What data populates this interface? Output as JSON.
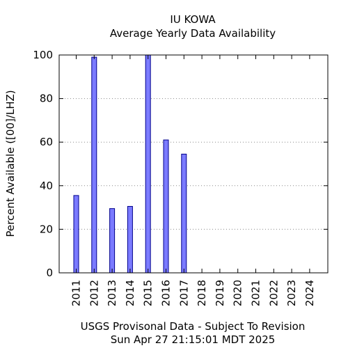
{
  "chart_data": {
    "type": "bar",
    "title": "IU KOWA",
    "subtitle": "Average Yearly Data Availability",
    "ylabel": "Percent Available ([00]/LHZ)",
    "xlabel": "USGS Provisonal Data - Subject To Revision",
    "footer": "Sun Apr 27 21:15:01 MDT 2025",
    "categories": [
      "2011",
      "2012",
      "2013",
      "2014",
      "2015",
      "2016",
      "2017",
      "2018",
      "2019",
      "2020",
      "2021",
      "2022",
      "2023",
      "2024"
    ],
    "values": [
      35.5,
      99,
      29.5,
      30.5,
      100,
      61,
      54.5,
      0,
      0,
      0,
      0,
      0,
      0,
      0
    ],
    "ylim": [
      0,
      100
    ],
    "yticks": [
      "0",
      "20",
      "40",
      "60",
      "80",
      "100"
    ],
    "grid": true,
    "colors": {
      "bar_fill": "#7b7bff",
      "bar_stroke": "#00008b",
      "grid": "#888888"
    }
  }
}
